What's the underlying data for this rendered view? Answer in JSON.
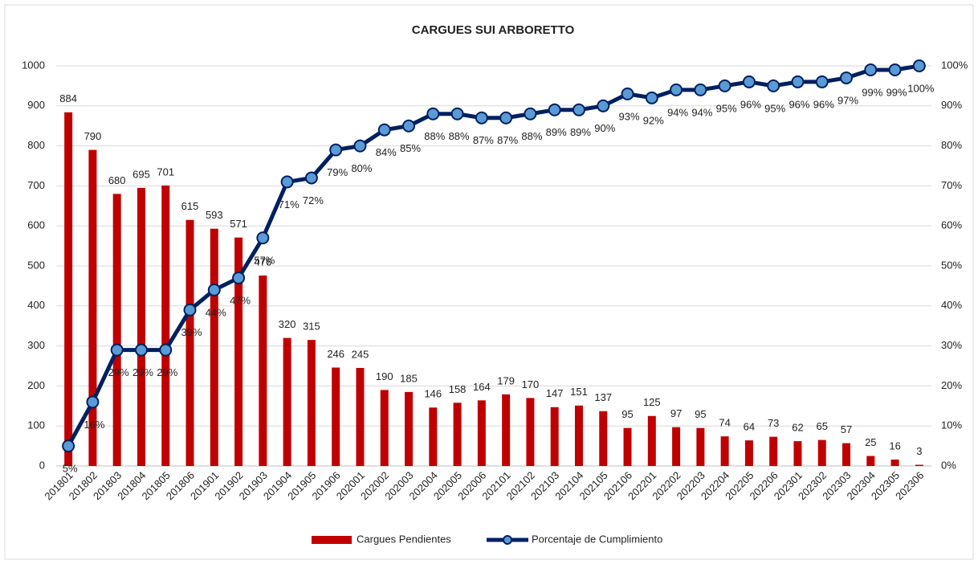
{
  "chart_data": {
    "type": "combo",
    "title": "CARGUES SUI ARBORETTO",
    "categories": [
      "201801",
      "201802",
      "201803",
      "201804",
      "201805",
      "201806",
      "201901",
      "201902",
      "201903",
      "201904",
      "201905",
      "201906",
      "202001",
      "202002",
      "202003",
      "202004",
      "202005",
      "202006",
      "202101",
      "202102",
      "202103",
      "202104",
      "202105",
      "202106",
      "202201",
      "202202",
      "202203",
      "202204",
      "202205",
      "202206",
      "202301",
      "202302",
      "202303",
      "202304",
      "202305",
      "202306"
    ],
    "series": [
      {
        "name": "Cargues Pendientes",
        "type": "bar",
        "color": "#c00000",
        "values": [
          884,
          790,
          680,
          695,
          701,
          615,
          593,
          571,
          476,
          320,
          315,
          246,
          245,
          190,
          185,
          146,
          158,
          164,
          179,
          170,
          147,
          151,
          137,
          95,
          125,
          97,
          95,
          74,
          64,
          73,
          62,
          65,
          57,
          25,
          16,
          3
        ]
      },
      {
        "name": "Porcentaje de Cumplimiento",
        "type": "line",
        "axis": "y2",
        "color": "#002060",
        "marker_color": "#5b9bd5",
        "values": [
          5,
          16,
          29,
          29,
          29,
          39,
          44,
          47,
          57,
          71,
          72,
          79,
          80,
          84,
          85,
          88,
          88,
          87,
          87,
          88,
          89,
          89,
          90,
          93,
          92,
          94,
          94,
          95,
          96,
          95,
          96,
          96,
          97,
          99,
          99,
          100
        ],
        "value_labels": [
          "5%",
          "16%",
          "29%",
          "29%",
          "29%",
          "39%",
          "44%",
          "47%",
          "57%",
          "71%",
          "72%",
          "79%",
          "80%",
          "84%",
          "85%",
          "88%",
          "88%",
          "87%",
          "87%",
          "88%",
          "89%",
          "89%",
          "90%",
          "93%",
          "92%",
          "94%",
          "94%",
          "95%",
          "96%",
          "95%",
          "96%",
          "96%",
          "97%",
          "99%",
          "99%",
          "100%"
        ]
      }
    ],
    "ylim": [
      0,
      1000
    ],
    "yticks": [
      0,
      100,
      200,
      300,
      400,
      500,
      600,
      700,
      800,
      900,
      1000
    ],
    "y2lim": [
      0,
      100
    ],
    "y2ticks": [
      {
        "value": 0,
        "label": "0%"
      },
      {
        "value": 10,
        "label": "10%"
      },
      {
        "value": 20,
        "label": "20%"
      },
      {
        "value": 30,
        "label": "30%"
      },
      {
        "value": 40,
        "label": "40%"
      },
      {
        "value": 50,
        "label": "50%"
      },
      {
        "value": 60,
        "label": "60%"
      },
      {
        "value": 70,
        "label": "70%"
      },
      {
        "value": 80,
        "label": "80%"
      },
      {
        "value": 90,
        "label": "90%"
      },
      {
        "value": 100,
        "label": "100%"
      }
    ],
    "grid": true,
    "legend": "bottom"
  }
}
